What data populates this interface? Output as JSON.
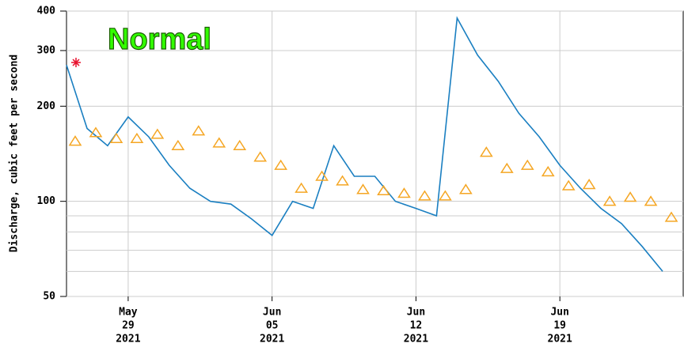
{
  "chart_data": {
    "type": "line",
    "status_label": "Normal",
    "y_label": "Discharge, cubic feet per second",
    "log_scale": true,
    "grid": true,
    "ylim": [
      50,
      400
    ],
    "yticks": [
      50,
      100,
      200,
      300,
      400
    ],
    "minor_yticks": [
      60,
      70,
      80,
      90
    ],
    "xlim": [
      "2021-05-26",
      "2021-06-25"
    ],
    "xticks": [
      {
        "value": "2021-05-29",
        "label": [
          "May",
          "29",
          "2021"
        ]
      },
      {
        "value": "2021-06-05",
        "label": [
          "Jun",
          "05",
          "2021"
        ]
      },
      {
        "value": "2021-06-12",
        "label": [
          "Jun",
          "12",
          "2021"
        ]
      },
      {
        "value": "2021-06-19",
        "label": [
          "Jun",
          "19",
          "2021"
        ]
      }
    ],
    "x": [
      "2021-05-26",
      "2021-05-27",
      "2021-05-28",
      "2021-05-29",
      "2021-05-30",
      "2021-05-31",
      "2021-06-01",
      "2021-06-02",
      "2021-06-03",
      "2021-06-04",
      "2021-06-05",
      "2021-06-06",
      "2021-06-07",
      "2021-06-08",
      "2021-06-09",
      "2021-06-10",
      "2021-06-11",
      "2021-06-12",
      "2021-06-13",
      "2021-06-14",
      "2021-06-15",
      "2021-06-16",
      "2021-06-17",
      "2021-06-18",
      "2021-06-19",
      "2021-06-20",
      "2021-06-21",
      "2021-06-22",
      "2021-06-23",
      "2021-06-24"
    ],
    "series": [
      {
        "color": "#1a7fc1",
        "marker": "line",
        "values": [
          270,
          170,
          150,
          185,
          160,
          130,
          110,
          100,
          98,
          88,
          78,
          100,
          95,
          150,
          120,
          120,
          100,
          95,
          90,
          380,
          290,
          240,
          190,
          160,
          130,
          110,
          95,
          85,
          72,
          60
        ]
      },
      {
        "color": "#f5a623",
        "marker": "triangle",
        "values": [
          155,
          165,
          158,
          158,
          163,
          150,
          167,
          153,
          150,
          138,
          130,
          110,
          120,
          116,
          109,
          108,
          106,
          104,
          104,
          109,
          143,
          127,
          130,
          124,
          112,
          113,
          100,
          103,
          100,
          89
        ]
      }
    ],
    "peak": {
      "x": "2021-05-26",
      "value": 275,
      "color": "#e8112d"
    }
  }
}
